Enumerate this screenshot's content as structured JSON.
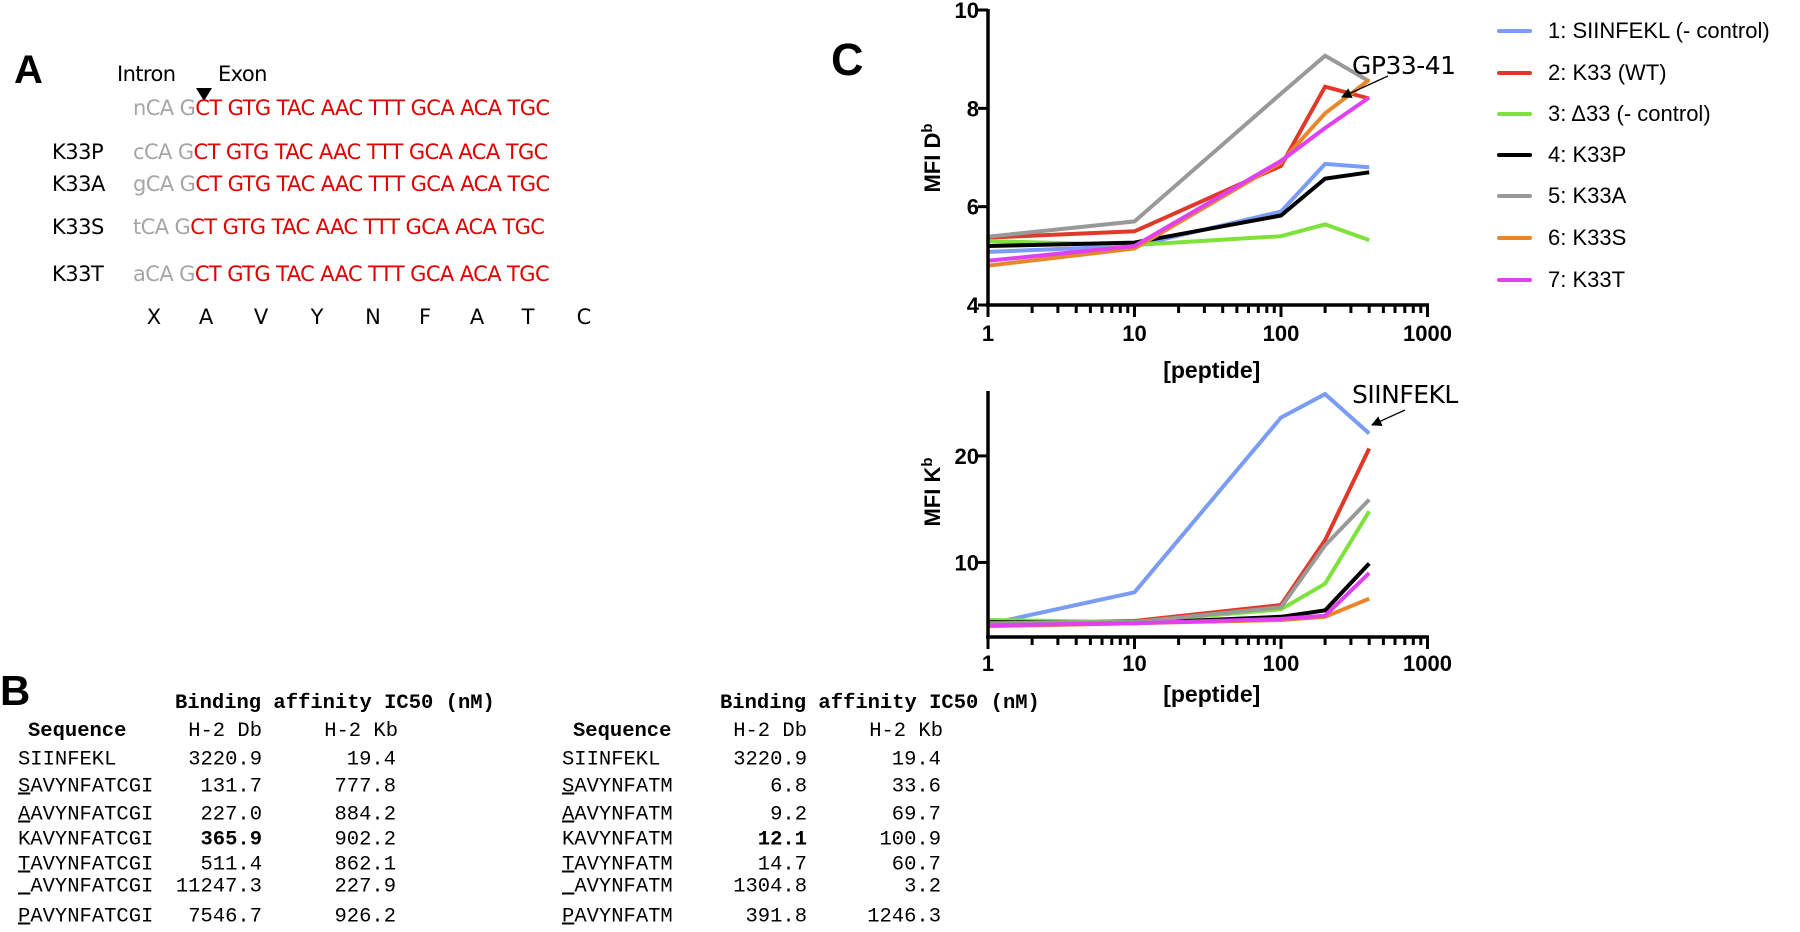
{
  "panels": {
    "a": "A",
    "b": "B",
    "c": "C"
  },
  "panel_a": {
    "intron_label": "Intron",
    "exon_label": "Exon",
    "rows": [
      {
        "label": "",
        "intron": "nCA G",
        "exon": "CT GTG TAC AAC TTT GCA ACA TGC"
      },
      {
        "label": "K33P",
        "intron": "cCA G",
        "exon": "CT GTG TAC AAC TTT GCA ACA TGC"
      },
      {
        "label": "K33A",
        "intron": "gCA G",
        "exon": "CT GTG TAC AAC TTT GCA ACA TGC"
      },
      {
        "label": "K33S",
        "intron": "tCA G",
        "exon": "CT GTG TAC AAC TTT GCA ACA TGC"
      },
      {
        "label": "K33T",
        "intron": "aCA G",
        "exon": "CT GTG TAC AAC TTT GCA ACA TGC"
      }
    ],
    "amino_acids": [
      "X",
      "A",
      "V",
      "Y",
      "N",
      "F",
      "A",
      "T",
      "C"
    ],
    "colors": {
      "intron": "#a6a6a6",
      "exon": "#e00000"
    }
  },
  "panel_b": {
    "tables": [
      {
        "title": "Binding affinity IC50 (nM)",
        "headers": [
          "Sequence",
          "H-2 Db",
          "H-2 Kb"
        ],
        "rows": [
          {
            "sequence": "SIINFEKL",
            "underline_first": false,
            "db": "3220.9",
            "kb": "19.4",
            "db_bold": false
          },
          {
            "sequence": "SAVYNFATCGI",
            "underline_first": true,
            "db": "131.7",
            "kb": "777.8",
            "db_bold": false
          },
          {
            "sequence": "AAVYNFATCGI",
            "underline_first": true,
            "db": "227.0",
            "kb": "884.2",
            "db_bold": false
          },
          {
            "sequence": "KAVYNFATCGI",
            "underline_first": false,
            "db": "365.9",
            "kb": "902.2",
            "db_bold": true
          },
          {
            "sequence": "TAVYNFATCGI",
            "underline_first": true,
            "db": "511.4",
            "kb": "862.1",
            "db_bold": false
          },
          {
            "sequence": "_AVYNFATCGI",
            "underline_first": true,
            "db": "11247.3",
            "kb": "227.9",
            "db_bold": false
          },
          {
            "sequence": "PAVYNFATCGI",
            "underline_first": true,
            "db": "7546.7",
            "kb": "926.2",
            "db_bold": false
          }
        ]
      },
      {
        "title": "Binding affinity IC50 (nM)",
        "headers": [
          "Sequence",
          "H-2 Db",
          "H-2 Kb"
        ],
        "rows": [
          {
            "sequence": "SIINFEKL",
            "underline_first": false,
            "db": "3220.9",
            "kb": "19.4",
            "db_bold": false
          },
          {
            "sequence": "SAVYNFATM",
            "underline_first": true,
            "db": "6.8",
            "kb": "33.6",
            "db_bold": false
          },
          {
            "sequence": "AAVYNFATM",
            "underline_first": true,
            "db": "9.2",
            "kb": "69.7",
            "db_bold": false
          },
          {
            "sequence": "KAVYNFATM",
            "underline_first": false,
            "db": "12.1",
            "kb": "100.9",
            "db_bold": true
          },
          {
            "sequence": "TAVYNFATM",
            "underline_first": true,
            "db": "14.7",
            "kb": "60.7",
            "db_bold": false
          },
          {
            "sequence": "_AVYNFATM",
            "underline_first": true,
            "db": "1304.8",
            "kb": "3.2",
            "db_bold": false
          },
          {
            "sequence": "PAVYNFATM",
            "underline_first": true,
            "db": "391.8",
            "kb": "1246.3",
            "db_bold": false
          }
        ]
      }
    ]
  },
  "legend": {
    "placement": "right",
    "items": [
      {
        "label": "1: SIINFEKL (- control)",
        "color": "#7b9cf5"
      },
      {
        "label": "2: K33 (WT)",
        "color": "#e0392a"
      },
      {
        "label": "3: Δ33 (- control)",
        "color": "#7de23a"
      },
      {
        "label": "4: K33P",
        "color": "#000000"
      },
      {
        "label": "5: K33A",
        "color": "#999999"
      },
      {
        "label": "6: K33S",
        "color": "#e8862a"
      },
      {
        "label": "7: K33T",
        "color": "#e040f0"
      }
    ]
  },
  "chart_data": [
    {
      "type": "line",
      "title": "",
      "xlabel": "[peptide]",
      "ylabel": "MFI D",
      "ylabel_superscript": "b",
      "xscale": "log",
      "xlim": [
        1,
        1000
      ],
      "ylim": [
        4,
        10
      ],
      "xticks": [
        "1",
        "10",
        "100",
        "1000"
      ],
      "yticks": [
        "4",
        "6",
        "8",
        "10"
      ],
      "grid": false,
      "x": [
        1,
        10,
        100,
        200,
        400
      ],
      "annotation": {
        "text": "GP33-41",
        "target_series": "2: K33 (WT)"
      },
      "series": [
        {
          "name": "1: SIINFEKL (- control)",
          "values": [
            5.08,
            5.2,
            5.9,
            6.87,
            6.8
          ]
        },
        {
          "name": "2: K33 (WT)",
          "values": [
            5.37,
            5.5,
            6.83,
            8.44,
            8.2
          ]
        },
        {
          "name": "3: Δ33 (- control)",
          "values": [
            5.3,
            5.22,
            5.4,
            5.64,
            5.32
          ]
        },
        {
          "name": "4: K33P",
          "values": [
            5.2,
            5.27,
            5.82,
            6.57,
            6.7
          ]
        },
        {
          "name": "5: K33A",
          "values": [
            5.39,
            5.7,
            8.3,
            9.07,
            8.55
          ]
        },
        {
          "name": "6: K33S",
          "values": [
            4.8,
            5.15,
            6.9,
            7.9,
            8.58
          ]
        },
        {
          "name": "7: K33T",
          "values": [
            4.9,
            5.2,
            6.93,
            7.6,
            8.22
          ]
        }
      ]
    },
    {
      "type": "line",
      "title": "",
      "xlabel": "[peptide]",
      "ylabel": "MFI K",
      "ylabel_superscript": "b",
      "xscale": "log",
      "xlim": [
        1,
        1000
      ],
      "ylim": [
        3,
        26
      ],
      "xticks": [
        "1",
        "10",
        "100",
        "1000"
      ],
      "yticks": [
        "10",
        "20"
      ],
      "grid": false,
      "x": [
        1,
        10,
        100,
        200,
        400
      ],
      "annotation": {
        "text": "SIINFEKL",
        "target_series": "1: SIINFEKL (- control)"
      },
      "series": [
        {
          "name": "1: SIINFEKL (- control)",
          "values": [
            4.2,
            7.2,
            23.6,
            25.8,
            22.1
          ]
        },
        {
          "name": "2: K33 (WT)",
          "values": [
            4.3,
            4.5,
            6.0,
            12.1,
            20.7
          ]
        },
        {
          "name": "3: Δ33 (- control)",
          "values": [
            4.6,
            4.4,
            5.6,
            8.0,
            14.8
          ]
        },
        {
          "name": "4: K33P",
          "values": [
            4.4,
            4.3,
            4.9,
            5.5,
            9.9
          ]
        },
        {
          "name": "5: K33A",
          "values": [
            4.3,
            4.4,
            5.8,
            11.6,
            15.9
          ]
        },
        {
          "name": "6: K33S",
          "values": [
            4.0,
            4.3,
            4.6,
            4.9,
            6.6
          ]
        },
        {
          "name": "7: K33T",
          "values": [
            4.1,
            4.3,
            4.7,
            5.0,
            9.0
          ]
        }
      ]
    }
  ]
}
